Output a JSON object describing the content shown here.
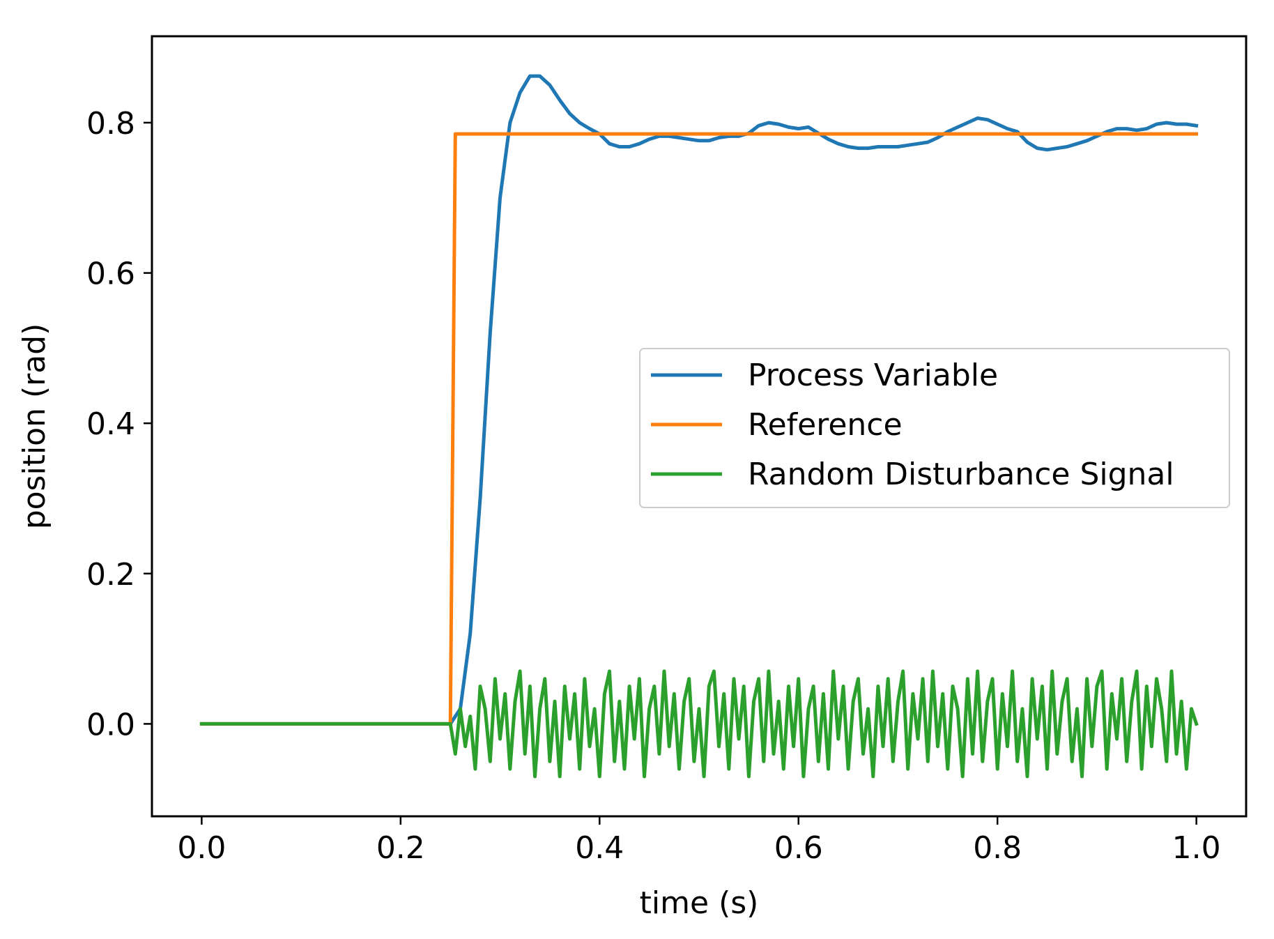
{
  "chart_data": {
    "type": "line",
    "title": "",
    "xlabel": "time (s)",
    "ylabel": "position (rad)",
    "xlim": [
      -0.05,
      1.05
    ],
    "ylim": [
      -0.123,
      0.915
    ],
    "xticks": [
      0.0,
      0.2,
      0.4,
      0.6,
      0.8,
      1.0
    ],
    "xtick_labels": [
      "0.0",
      "0.2",
      "0.4",
      "0.6",
      "0.8",
      "1.0"
    ],
    "yticks": [
      0.0,
      0.2,
      0.4,
      0.6,
      0.8
    ],
    "ytick_labels": [
      "0.0",
      "0.2",
      "0.4",
      "0.6",
      "0.8"
    ],
    "grid": false,
    "legend_position": "center-right",
    "series": [
      {
        "name": "Process Variable",
        "color": "#1f77b4",
        "points": [
          [
            0.0,
            0.0
          ],
          [
            0.25,
            0.0
          ],
          [
            0.26,
            0.02
          ],
          [
            0.27,
            0.12
          ],
          [
            0.28,
            0.3
          ],
          [
            0.29,
            0.52
          ],
          [
            0.3,
            0.7
          ],
          [
            0.31,
            0.8
          ],
          [
            0.32,
            0.84
          ],
          [
            0.33,
            0.862
          ],
          [
            0.34,
            0.862
          ],
          [
            0.35,
            0.85
          ],
          [
            0.36,
            0.83
          ],
          [
            0.37,
            0.812
          ],
          [
            0.38,
            0.8
          ],
          [
            0.39,
            0.792
          ],
          [
            0.4,
            0.785
          ],
          [
            0.41,
            0.772
          ],
          [
            0.42,
            0.768
          ],
          [
            0.43,
            0.768
          ],
          [
            0.44,
            0.772
          ],
          [
            0.45,
            0.778
          ],
          [
            0.46,
            0.782
          ],
          [
            0.47,
            0.782
          ],
          [
            0.48,
            0.78
          ],
          [
            0.49,
            0.778
          ],
          [
            0.5,
            0.776
          ],
          [
            0.51,
            0.776
          ],
          [
            0.52,
            0.78
          ],
          [
            0.53,
            0.782
          ],
          [
            0.54,
            0.782
          ],
          [
            0.55,
            0.786
          ],
          [
            0.56,
            0.796
          ],
          [
            0.57,
            0.8
          ],
          [
            0.58,
            0.798
          ],
          [
            0.59,
            0.794
          ],
          [
            0.6,
            0.792
          ],
          [
            0.61,
            0.794
          ],
          [
            0.62,
            0.786
          ],
          [
            0.63,
            0.778
          ],
          [
            0.64,
            0.772
          ],
          [
            0.65,
            0.768
          ],
          [
            0.66,
            0.766
          ],
          [
            0.67,
            0.766
          ],
          [
            0.68,
            0.768
          ],
          [
            0.69,
            0.768
          ],
          [
            0.7,
            0.768
          ],
          [
            0.71,
            0.77
          ],
          [
            0.72,
            0.772
          ],
          [
            0.73,
            0.774
          ],
          [
            0.74,
            0.78
          ],
          [
            0.75,
            0.788
          ],
          [
            0.76,
            0.794
          ],
          [
            0.77,
            0.8
          ],
          [
            0.78,
            0.806
          ],
          [
            0.79,
            0.804
          ],
          [
            0.8,
            0.798
          ],
          [
            0.81,
            0.792
          ],
          [
            0.82,
            0.788
          ],
          [
            0.83,
            0.774
          ],
          [
            0.84,
            0.766
          ],
          [
            0.85,
            0.764
          ],
          [
            0.86,
            0.766
          ],
          [
            0.87,
            0.768
          ],
          [
            0.88,
            0.772
          ],
          [
            0.89,
            0.776
          ],
          [
            0.9,
            0.782
          ],
          [
            0.91,
            0.788
          ],
          [
            0.92,
            0.792
          ],
          [
            0.93,
            0.792
          ],
          [
            0.94,
            0.79
          ],
          [
            0.95,
            0.792
          ],
          [
            0.96,
            0.798
          ],
          [
            0.97,
            0.8
          ],
          [
            0.98,
            0.798
          ],
          [
            0.99,
            0.798
          ],
          [
            1.0,
            0.796
          ]
        ]
      },
      {
        "name": "Reference",
        "color": "#ff7f0e",
        "points": [
          [
            0.0,
            0.0
          ],
          [
            0.25,
            0.0
          ],
          [
            0.255,
            0.785
          ],
          [
            1.0,
            0.785
          ]
        ]
      },
      {
        "name": "Random Disturbance Signal",
        "color": "#2ca02c",
        "points": [
          [
            0.0,
            0.0
          ],
          [
            0.25,
            0.0
          ],
          [
            0.255,
            -0.04
          ],
          [
            0.26,
            0.02
          ],
          [
            0.265,
            -0.03
          ],
          [
            0.27,
            0.01
          ],
          [
            0.275,
            -0.06
          ],
          [
            0.28,
            0.05
          ],
          [
            0.285,
            0.02
          ],
          [
            0.29,
            -0.05
          ],
          [
            0.295,
            0.06
          ],
          [
            0.3,
            -0.02
          ],
          [
            0.305,
            0.04
          ],
          [
            0.31,
            -0.06
          ],
          [
            0.315,
            0.03
          ],
          [
            0.32,
            0.07
          ],
          [
            0.325,
            -0.04
          ],
          [
            0.33,
            0.05
          ],
          [
            0.335,
            -0.07
          ],
          [
            0.34,
            0.02
          ],
          [
            0.345,
            0.06
          ],
          [
            0.35,
            -0.05
          ],
          [
            0.355,
            0.03
          ],
          [
            0.36,
            -0.07
          ],
          [
            0.365,
            0.05
          ],
          [
            0.37,
            -0.02
          ],
          [
            0.375,
            0.04
          ],
          [
            0.38,
            -0.06
          ],
          [
            0.385,
            0.06
          ],
          [
            0.39,
            -0.03
          ],
          [
            0.395,
            0.02
          ],
          [
            0.4,
            -0.07
          ],
          [
            0.405,
            0.04
          ],
          [
            0.41,
            0.07
          ],
          [
            0.415,
            -0.05
          ],
          [
            0.42,
            0.03
          ],
          [
            0.425,
            -0.06
          ],
          [
            0.43,
            0.05
          ],
          [
            0.435,
            -0.02
          ],
          [
            0.44,
            0.06
          ],
          [
            0.445,
            -0.07
          ],
          [
            0.45,
            0.02
          ],
          [
            0.455,
            0.05
          ],
          [
            0.46,
            -0.04
          ],
          [
            0.465,
            0.07
          ],
          [
            0.47,
            -0.03
          ],
          [
            0.475,
            0.04
          ],
          [
            0.48,
            -0.06
          ],
          [
            0.485,
            0.03
          ],
          [
            0.49,
            0.06
          ],
          [
            0.495,
            -0.05
          ],
          [
            0.5,
            0.02
          ],
          [
            0.505,
            -0.07
          ],
          [
            0.51,
            0.05
          ],
          [
            0.515,
            0.07
          ],
          [
            0.52,
            -0.03
          ],
          [
            0.525,
            0.04
          ],
          [
            0.53,
            -0.06
          ],
          [
            0.535,
            0.06
          ],
          [
            0.54,
            -0.02
          ],
          [
            0.545,
            0.05
          ],
          [
            0.55,
            -0.07
          ],
          [
            0.555,
            0.03
          ],
          [
            0.56,
            0.06
          ],
          [
            0.565,
            -0.05
          ],
          [
            0.57,
            0.07
          ],
          [
            0.575,
            -0.04
          ],
          [
            0.58,
            0.03
          ],
          [
            0.585,
            -0.06
          ],
          [
            0.59,
            0.05
          ],
          [
            0.595,
            -0.03
          ],
          [
            0.6,
            0.06
          ],
          [
            0.605,
            -0.07
          ],
          [
            0.61,
            0.02
          ],
          [
            0.615,
            0.05
          ],
          [
            0.62,
            -0.05
          ],
          [
            0.625,
            0.04
          ],
          [
            0.63,
            -0.06
          ],
          [
            0.635,
            0.07
          ],
          [
            0.64,
            -0.02
          ],
          [
            0.645,
            0.05
          ],
          [
            0.65,
            -0.06
          ],
          [
            0.655,
            0.03
          ],
          [
            0.66,
            0.06
          ],
          [
            0.665,
            -0.04
          ],
          [
            0.67,
            0.02
          ],
          [
            0.675,
            -0.07
          ],
          [
            0.68,
            0.05
          ],
          [
            0.685,
            -0.03
          ],
          [
            0.69,
            0.06
          ],
          [
            0.695,
            -0.05
          ],
          [
            0.7,
            0.03
          ],
          [
            0.705,
            0.07
          ],
          [
            0.71,
            -0.06
          ],
          [
            0.715,
            0.04
          ],
          [
            0.72,
            -0.02
          ],
          [
            0.725,
            0.06
          ],
          [
            0.73,
            -0.05
          ],
          [
            0.735,
            0.07
          ],
          [
            0.74,
            -0.03
          ],
          [
            0.745,
            0.04
          ],
          [
            0.75,
            -0.06
          ],
          [
            0.755,
            0.05
          ],
          [
            0.76,
            0.02
          ],
          [
            0.765,
            -0.07
          ],
          [
            0.77,
            0.06
          ],
          [
            0.775,
            -0.04
          ],
          [
            0.78,
            0.07
          ],
          [
            0.785,
            -0.05
          ],
          [
            0.79,
            0.03
          ],
          [
            0.795,
            0.06
          ],
          [
            0.8,
            -0.06
          ],
          [
            0.805,
            0.04
          ],
          [
            0.81,
            -0.03
          ],
          [
            0.815,
            0.07
          ],
          [
            0.82,
            -0.05
          ],
          [
            0.825,
            0.02
          ],
          [
            0.83,
            -0.07
          ],
          [
            0.835,
            0.06
          ],
          [
            0.84,
            -0.02
          ],
          [
            0.845,
            0.05
          ],
          [
            0.85,
            -0.06
          ],
          [
            0.855,
            0.07
          ],
          [
            0.86,
            -0.04
          ],
          [
            0.865,
            0.03
          ],
          [
            0.87,
            0.06
          ],
          [
            0.875,
            -0.05
          ],
          [
            0.88,
            0.02
          ],
          [
            0.885,
            -0.07
          ],
          [
            0.89,
            0.06
          ],
          [
            0.895,
            -0.03
          ],
          [
            0.9,
            0.05
          ],
          [
            0.905,
            0.07
          ],
          [
            0.91,
            -0.06
          ],
          [
            0.915,
            0.04
          ],
          [
            0.92,
            -0.02
          ],
          [
            0.925,
            0.06
          ],
          [
            0.93,
            -0.05
          ],
          [
            0.935,
            0.03
          ],
          [
            0.94,
            0.07
          ],
          [
            0.945,
            -0.06
          ],
          [
            0.95,
            0.05
          ],
          [
            0.955,
            -0.03
          ],
          [
            0.96,
            0.06
          ],
          [
            0.965,
            0.02
          ],
          [
            0.97,
            -0.05
          ],
          [
            0.975,
            0.07
          ],
          [
            0.98,
            -0.04
          ],
          [
            0.985,
            0.03
          ],
          [
            0.99,
            -0.06
          ],
          [
            0.995,
            0.02
          ],
          [
            1.0,
            0.0
          ]
        ]
      }
    ]
  }
}
